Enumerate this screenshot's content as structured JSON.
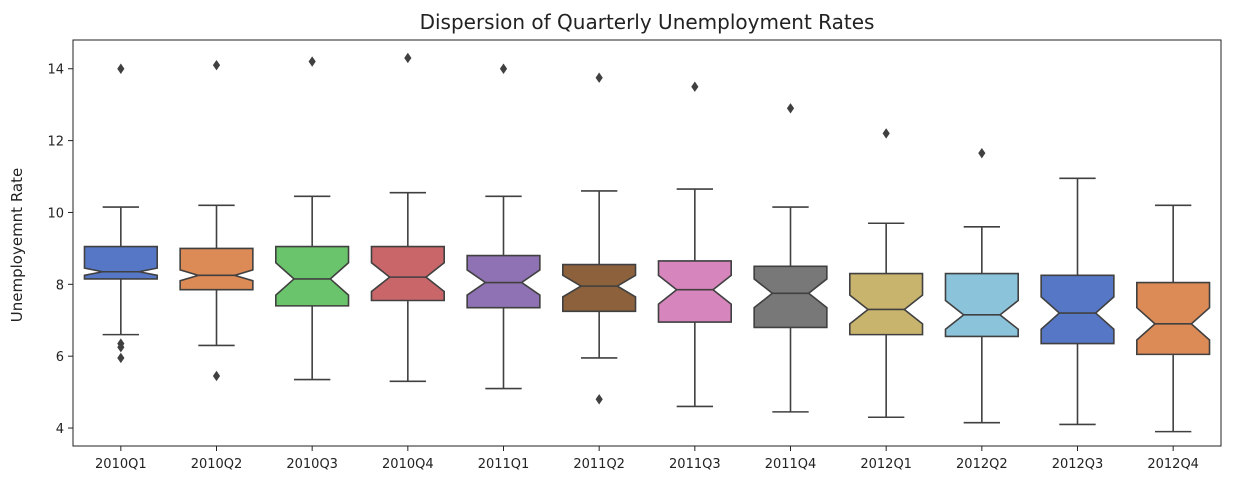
{
  "chart_data": {
    "type": "boxplot",
    "notched": true,
    "title": "Dispersion of Quarterly Unemployment Rates",
    "xlabel": "",
    "ylabel": "Unemployemnt Rate",
    "ylim": [
      3.5,
      14.8
    ],
    "yticks": [
      4,
      6,
      8,
      10,
      12,
      14
    ],
    "grid": false,
    "legend": "none",
    "categories": [
      "2010Q1",
      "2010Q2",
      "2010Q3",
      "2010Q4",
      "2011Q1",
      "2011Q2",
      "2011Q3",
      "2011Q4",
      "2012Q1",
      "2012Q2",
      "2012Q3",
      "2012Q4"
    ],
    "boxes": [
      {
        "label": "2010Q1",
        "whisker_low": 6.6,
        "q1": 8.15,
        "median": 8.35,
        "q3": 9.05,
        "whisker_high": 10.15,
        "notch_low": 8.25,
        "notch_high": 8.45,
        "outliers": [
          14.0,
          6.35,
          6.25,
          5.95
        ],
        "color": "#5677c6"
      },
      {
        "label": "2010Q2",
        "whisker_low": 6.3,
        "q1": 7.85,
        "median": 8.25,
        "q3": 9.0,
        "whisker_high": 10.2,
        "notch_low": 8.1,
        "notch_high": 8.4,
        "outliers": [
          14.1,
          5.45
        ],
        "color": "#dc8a56"
      },
      {
        "label": "2010Q3",
        "whisker_low": 5.35,
        "q1": 7.4,
        "median": 8.15,
        "q3": 9.05,
        "whisker_high": 10.45,
        "notch_low": 7.7,
        "notch_high": 8.6,
        "outliers": [
          14.2
        ],
        "color": "#6ac46b"
      },
      {
        "label": "2010Q4",
        "whisker_low": 5.3,
        "q1": 7.55,
        "median": 8.2,
        "q3": 9.05,
        "whisker_high": 10.55,
        "notch_low": 7.8,
        "notch_high": 8.6,
        "outliers": [
          14.3
        ],
        "color": "#c9666a"
      },
      {
        "label": "2011Q1",
        "whisker_low": 5.1,
        "q1": 7.35,
        "median": 8.05,
        "q3": 8.8,
        "whisker_high": 10.45,
        "notch_low": 7.7,
        "notch_high": 8.4,
        "outliers": [
          14.0
        ],
        "color": "#8f72b3"
      },
      {
        "label": "2011Q2",
        "whisker_low": 5.95,
        "q1": 7.25,
        "median": 7.95,
        "q3": 8.55,
        "whisker_high": 10.6,
        "notch_low": 7.65,
        "notch_high": 8.25,
        "outliers": [
          13.75,
          4.8
        ],
        "color": "#8c613c"
      },
      {
        "label": "2011Q3",
        "whisker_low": 4.6,
        "q1": 6.95,
        "median": 7.85,
        "q3": 8.65,
        "whisker_high": 10.65,
        "notch_low": 7.45,
        "notch_high": 8.25,
        "outliers": [
          13.5
        ],
        "color": "#d685bd"
      },
      {
        "label": "2011Q4",
        "whisker_low": 4.45,
        "q1": 6.8,
        "median": 7.75,
        "q3": 8.5,
        "whisker_high": 10.15,
        "notch_low": 7.35,
        "notch_high": 8.15,
        "outliers": [
          12.9
        ],
        "color": "#787878"
      },
      {
        "label": "2012Q1",
        "whisker_low": 4.3,
        "q1": 6.6,
        "median": 7.3,
        "q3": 8.3,
        "whisker_high": 9.7,
        "notch_low": 6.9,
        "notch_high": 7.7,
        "outliers": [
          12.2
        ],
        "color": "#c9b46d"
      },
      {
        "label": "2012Q2",
        "whisker_low": 4.15,
        "q1": 6.55,
        "median": 7.15,
        "q3": 8.3,
        "whisker_high": 9.6,
        "notch_low": 6.75,
        "notch_high": 7.55,
        "outliers": [
          11.65
        ],
        "color": "#8bc3da"
      },
      {
        "label": "2012Q3",
        "whisker_low": 4.1,
        "q1": 6.35,
        "median": 7.2,
        "q3": 8.25,
        "whisker_high": 10.95,
        "notch_low": 6.75,
        "notch_high": 7.65,
        "outliers": [],
        "color": "#5677c6"
      },
      {
        "label": "2012Q4",
        "whisker_low": 3.9,
        "q1": 6.05,
        "median": 6.9,
        "q3": 8.05,
        "whisker_high": 10.2,
        "notch_low": 6.45,
        "notch_high": 7.35,
        "outliers": [],
        "color": "#dc8a56"
      }
    ]
  },
  "style": {
    "line_color": "#404040",
    "axis_color": "#222222"
  }
}
